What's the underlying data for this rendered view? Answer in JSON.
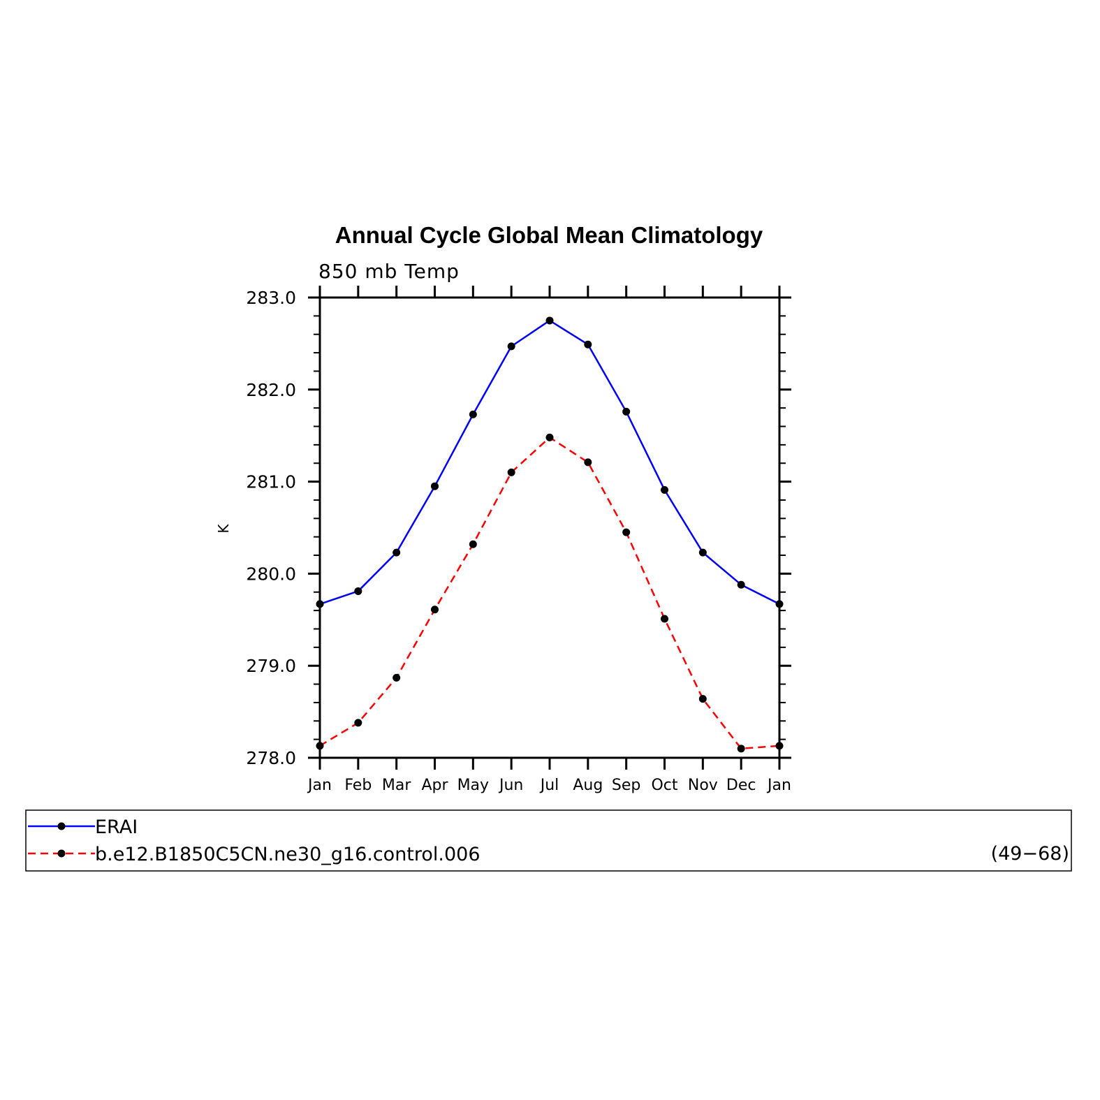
{
  "chart_data": {
    "type": "line",
    "title": "Annual Cycle Global Mean Climatology",
    "subtitle": "850 mb Temp",
    "ylabel": "K",
    "xlabel": "",
    "categories": [
      "Jan",
      "Feb",
      "Mar",
      "Apr",
      "May",
      "Jun",
      "Jul",
      "Aug",
      "Sep",
      "Oct",
      "Nov",
      "Dec",
      "Jan"
    ],
    "ylim": [
      278.0,
      283.0
    ],
    "yticks": [
      "278.0",
      "279.0",
      "280.0",
      "281.0",
      "282.0",
      "283.0"
    ],
    "grid": false,
    "legend_placement": "bottom",
    "series": [
      {
        "name": "ERAI",
        "color": "#0000ff",
        "dash": "solid",
        "marker": "circle",
        "values": [
          279.67,
          279.81,
          280.23,
          280.95,
          281.73,
          282.47,
          282.75,
          282.49,
          281.76,
          280.91,
          280.23,
          279.88,
          279.67
        ]
      },
      {
        "name": "b.e12.B1850C5CN.ne30_g16.control.006",
        "color": "#ff0000",
        "dash": "dashed",
        "marker": "circle",
        "values": [
          278.13,
          278.38,
          278.87,
          279.61,
          280.32,
          281.1,
          281.48,
          281.21,
          280.45,
          279.51,
          278.64,
          278.1,
          278.13
        ]
      }
    ],
    "legend_note": "(49−68)"
  }
}
